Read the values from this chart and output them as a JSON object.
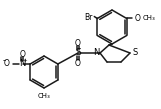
{
  "bg_color": "#ffffff",
  "line_color": "#1a1a1a",
  "line_width": 1.1,
  "figsize": [
    1.61,
    1.09
  ],
  "dpi": 100,
  "xlim": [
    0,
    161
  ],
  "ylim": [
    0,
    109
  ]
}
